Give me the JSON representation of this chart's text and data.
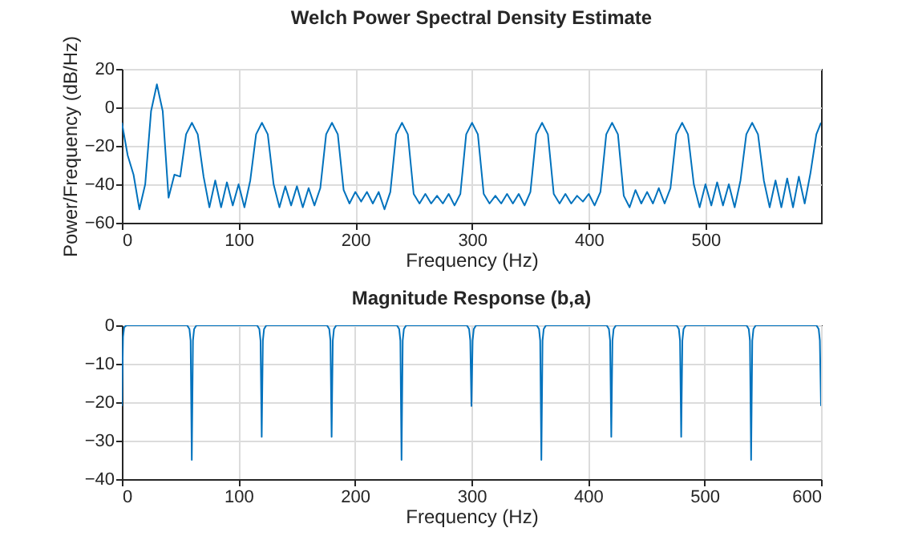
{
  "chart_data": [
    {
      "type": "line",
      "title": "Welch Power Spectral Density Estimate",
      "xlabel": "Frequency (Hz)",
      "ylabel": "Power/Frequency (dB/Hz)",
      "xlim": [
        0,
        599
      ],
      "xticks": [
        0,
        100,
        200,
        300,
        400,
        500
      ],
      "ylim": [
        -60,
        20
      ],
      "yticks": [
        -60,
        -40,
        -20,
        0,
        20
      ],
      "grid": true,
      "x": [
        0,
        5,
        10,
        15,
        20,
        25,
        30,
        35,
        40,
        45,
        50,
        55,
        60,
        65,
        70,
        75,
        80,
        85,
        90,
        95,
        100,
        105,
        110,
        115,
        120,
        125,
        130,
        135,
        140,
        145,
        150,
        155,
        160,
        165,
        170,
        175,
        180,
        185,
        190,
        195,
        200,
        205,
        210,
        215,
        220,
        225,
        230,
        235,
        240,
        245,
        250,
        255,
        260,
        265,
        270,
        275,
        280,
        285,
        290,
        295,
        300,
        305,
        310,
        315,
        320,
        325,
        330,
        335,
        340,
        345,
        350,
        355,
        360,
        365,
        370,
        375,
        380,
        385,
        390,
        395,
        400,
        405,
        410,
        415,
        420,
        425,
        430,
        435,
        440,
        445,
        450,
        455,
        460,
        465,
        470,
        475,
        480,
        485,
        490,
        495,
        500,
        505,
        510,
        515,
        520,
        525,
        530,
        535,
        540,
        545,
        550,
        555,
        560,
        565,
        570,
        575,
        580,
        585,
        590,
        595,
        599
      ],
      "series": [
        {
          "color": "#0072bd",
          "values": [
            -8,
            -25,
            -35,
            -53,
            -40,
            -2,
            12,
            -2,
            -47,
            -35,
            -36,
            -14,
            -8,
            -14,
            -36,
            -52,
            -38,
            -52,
            -39,
            -51,
            -40,
            -52,
            -38,
            -14,
            -8,
            -14,
            -40,
            -52,
            -41,
            -51,
            -41,
            -52,
            -42,
            -51,
            -42,
            -14,
            -8,
            -14,
            -43,
            -50,
            -44,
            -49,
            -44,
            -50,
            -44,
            -53,
            -44,
            -14,
            -8,
            -14,
            -45,
            -50,
            -45,
            -50,
            -46,
            -50,
            -45,
            -51,
            -45,
            -14,
            -8,
            -14,
            -45,
            -50,
            -46,
            -50,
            -45,
            -50,
            -45,
            -51,
            -44,
            -14,
            -8,
            -14,
            -45,
            -50,
            -45,
            -50,
            -46,
            -49,
            -45,
            -51,
            -44,
            -14,
            -8,
            -14,
            -46,
            -52,
            -43,
            -50,
            -44,
            -50,
            -42,
            -50,
            -42,
            -14,
            -8,
            -14,
            -40,
            -52,
            -40,
            -51,
            -39,
            -51,
            -40,
            -52,
            -38,
            -14,
            -8,
            -14,
            -38,
            -52,
            -38,
            -52,
            -37,
            -52,
            -36,
            -50,
            -34,
            -14,
            -8
          ]
        }
      ]
    },
    {
      "type": "line",
      "title": "Magnitude Response (b,a)",
      "xlabel": "Frequency (Hz)",
      "xlim": [
        0,
        600
      ],
      "xticks": [
        0,
        100,
        200,
        300,
        400,
        500,
        600
      ],
      "ylim": [
        -40,
        0
      ],
      "yticks": [
        -40,
        -30,
        -20,
        -10,
        0
      ],
      "grid": true,
      "x": [
        0,
        1,
        2,
        4,
        56,
        58,
        59,
        60,
        61,
        62,
        64,
        116,
        118,
        119,
        120,
        121,
        122,
        124,
        176,
        178,
        179,
        180,
        181,
        182,
        184,
        236,
        238,
        239,
        240,
        241,
        242,
        244,
        296,
        298,
        299,
        300,
        301,
        302,
        304,
        356,
        358,
        359,
        360,
        361,
        362,
        364,
        416,
        418,
        419,
        420,
        421,
        422,
        424,
        476,
        478,
        479,
        480,
        481,
        482,
        484,
        536,
        538,
        539,
        540,
        541,
        542,
        544,
        596,
        598,
        599,
        600
      ],
      "series": [
        {
          "color": "#0072bd",
          "values": [
            -21,
            -3,
            -0.5,
            0,
            0,
            -1,
            -4,
            -35,
            -4,
            -1,
            0,
            0,
            -1,
            -4,
            -29,
            -4,
            -1,
            0,
            0,
            -1,
            -4,
            -29,
            -4,
            -1,
            0,
            0,
            -1,
            -4,
            -35,
            -4,
            -1,
            0,
            0,
            -1,
            -4,
            -21,
            -4,
            -1,
            0,
            0,
            -1,
            -4,
            -35,
            -4,
            -1,
            0,
            0,
            -1,
            -4,
            -29,
            -4,
            -1,
            0,
            0,
            -1,
            -4,
            -29,
            -4,
            -1,
            0,
            0,
            -1,
            -4,
            -35,
            -4,
            -1,
            0,
            0,
            -1,
            -4,
            -21
          ]
        }
      ]
    }
  ]
}
